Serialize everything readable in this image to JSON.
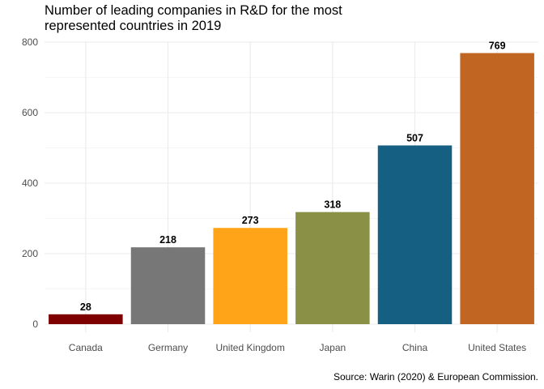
{
  "chart_data": {
    "type": "bar",
    "title": "Number of leading companies in R&D for the most represented countries in 2019",
    "title_lines": [
      "Number of leading companies in R&D for the most",
      "represented countries in 2019"
    ],
    "caption": "Source: Warin (2020) & European Commission.",
    "xlabel": "",
    "ylabel": "",
    "categories": [
      "Canada",
      "Germany",
      "United Kingdom",
      "Japan",
      "China",
      "United States"
    ],
    "values": [
      28,
      218,
      273,
      318,
      507,
      769
    ],
    "colors": [
      "#7f0000",
      "#777777",
      "#ffa319",
      "#8a9045",
      "#155f83",
      "#c16622"
    ],
    "ylim": [
      0,
      800
    ],
    "yticks": [
      0,
      200,
      400,
      600,
      800
    ],
    "grid": true,
    "legend": "none"
  }
}
